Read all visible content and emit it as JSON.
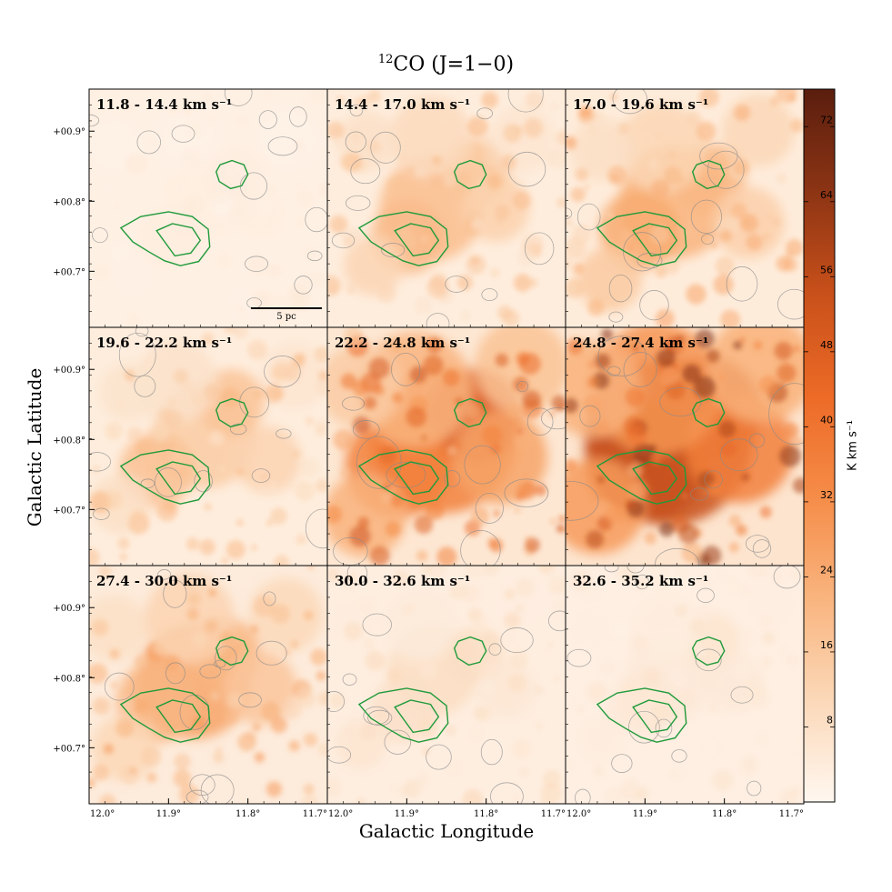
{
  "chart_data": {
    "type": "heatmap",
    "title": "CO (J=1−0)",
    "title_isotope": "12",
    "xlabel": "Galactic Longitude",
    "ylabel": "Galactic Latitude",
    "xlim": [
      12.0,
      11.7
    ],
    "ylim": [
      0.62,
      0.96
    ],
    "x_ticks": [
      "12.0°",
      "11.9°",
      "11.8°",
      "11.7°"
    ],
    "y_ticks": [
      "+00.9°",
      "+00.8°",
      "+00.7°"
    ],
    "scale_bar": "5 pc",
    "colorbar": {
      "label": "K km s⁻¹",
      "min": 0,
      "max": 76,
      "ticks": [
        "8",
        "16",
        "24",
        "32",
        "40",
        "48",
        "56",
        "64",
        "72"
      ],
      "colors": [
        "#fff7f0",
        "#fbd8b8",
        "#f9b47e",
        "#f58c48",
        "#ec6a26",
        "#c8501a",
        "#8c3414",
        "#5a1e0e"
      ]
    },
    "contour_color": "#1f9a3a",
    "panels": [
      {
        "label": "11.8 - 14.4 km s⁻¹",
        "intensity": 0.05
      },
      {
        "label": "14.4 - 17.0 km s⁻¹",
        "intensity": 0.22
      },
      {
        "label": "17.0 - 19.6 km s⁻¹",
        "intensity": 0.28
      },
      {
        "label": "19.6 - 22.2 km s⁻¹",
        "intensity": 0.22
      },
      {
        "label": "22.2 - 24.8 km s⁻¹",
        "intensity": 0.55
      },
      {
        "label": "24.8 - 27.4 km s⁻¹",
        "intensity": 0.72
      },
      {
        "label": "27.4 - 30.0 km s⁻¹",
        "intensity": 0.3
      },
      {
        "label": "30.0 - 32.6 km s⁻¹",
        "intensity": 0.12
      },
      {
        "label": "32.6 - 35.2 km s⁻¹",
        "intensity": 0.08
      }
    ]
  }
}
